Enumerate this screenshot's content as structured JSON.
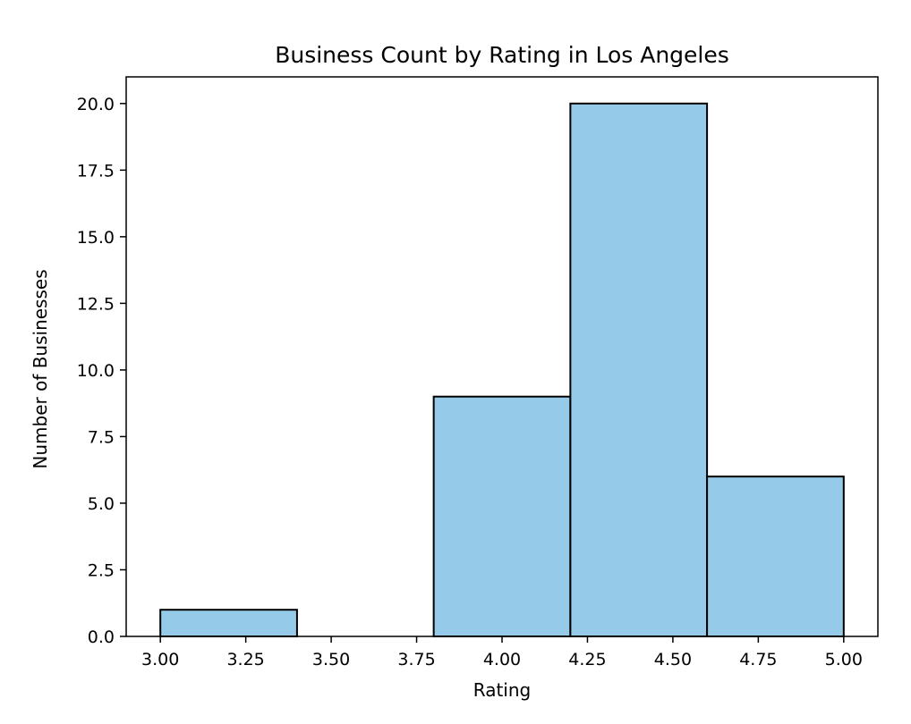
{
  "chart_data": {
    "type": "bar",
    "title": "Business Count by Rating in Los Angeles",
    "xlabel": "Rating",
    "ylabel": "Number of Businesses",
    "bins": [
      {
        "start": 3.0,
        "end": 3.4,
        "count": 1
      },
      {
        "start": 3.4,
        "end": 3.8,
        "count": 0
      },
      {
        "start": 3.8,
        "end": 4.2,
        "count": 9
      },
      {
        "start": 4.2,
        "end": 4.6,
        "count": 20
      },
      {
        "start": 4.6,
        "end": 5.0,
        "count": 6
      }
    ],
    "xlim": [
      2.9,
      5.1
    ],
    "ylim": [
      0,
      21
    ],
    "xticks": [
      "3.00",
      "3.25",
      "3.50",
      "3.75",
      "4.00",
      "4.25",
      "4.50",
      "4.75",
      "5.00"
    ],
    "yticks": [
      "0.0",
      "2.5",
      "5.0",
      "7.5",
      "10.0",
      "12.5",
      "15.0",
      "17.5",
      "20.0"
    ],
    "bar_color": "#95cbe8",
    "edge_color": "#000000",
    "grid": false,
    "legend": "none"
  }
}
